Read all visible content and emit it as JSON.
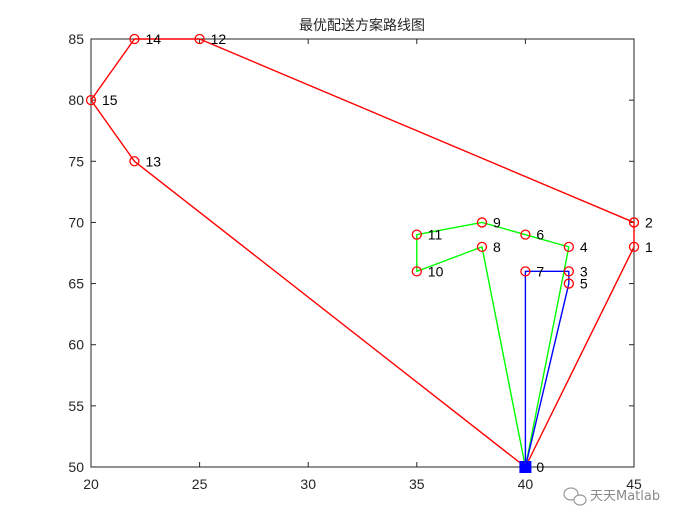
{
  "chart_data": {
    "type": "line",
    "title": "最优配送方案路线图",
    "xlabel": "",
    "ylabel": "",
    "xlim": [
      20,
      45
    ],
    "ylim": [
      50,
      85
    ],
    "xticks": [
      20,
      25,
      30,
      35,
      40,
      45
    ],
    "yticks": [
      50,
      55,
      60,
      65,
      70,
      75,
      80,
      85
    ],
    "grid": false,
    "depot": {
      "label": "0",
      "x": 40,
      "y": 50,
      "color": "#0000ff"
    },
    "points": [
      {
        "label": "1",
        "x": 45,
        "y": 68
      },
      {
        "label": "2",
        "x": 45,
        "y": 70
      },
      {
        "label": "3",
        "x": 42,
        "y": 66
      },
      {
        "label": "4",
        "x": 42,
        "y": 68
      },
      {
        "label": "5",
        "x": 42,
        "y": 65
      },
      {
        "label": "6",
        "x": 40,
        "y": 69
      },
      {
        "label": "7",
        "x": 40,
        "y": 66
      },
      {
        "label": "8",
        "x": 38,
        "y": 68
      },
      {
        "label": "9",
        "x": 38,
        "y": 70
      },
      {
        "label": "10",
        "x": 35,
        "y": 66
      },
      {
        "label": "11",
        "x": 35,
        "y": 69
      },
      {
        "label": "12",
        "x": 25,
        "y": 85
      },
      {
        "label": "13",
        "x": 22,
        "y": 75
      },
      {
        "label": "14",
        "x": 22,
        "y": 85
      },
      {
        "label": "15",
        "x": 20,
        "y": 80
      }
    ],
    "marker_color": "#ff0000",
    "routes": [
      {
        "color": "#ff0000",
        "path": [
          0,
          1,
          2,
          12,
          14,
          15,
          13,
          0
        ]
      },
      {
        "color": "#00ff00",
        "path": [
          0,
          8,
          10,
          11,
          9,
          6,
          4,
          0
        ]
      },
      {
        "color": "#0000ff",
        "path": [
          0,
          7,
          3,
          5,
          0
        ]
      }
    ]
  },
  "watermark": {
    "text": "天天Matlab",
    "icon": "wechat-icon"
  }
}
